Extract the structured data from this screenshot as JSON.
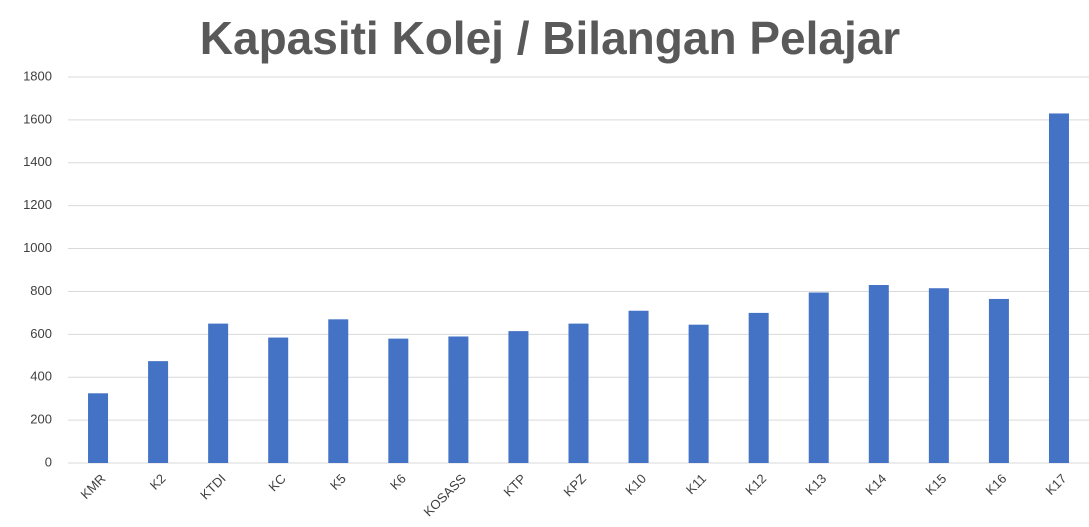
{
  "chart_data": {
    "type": "bar",
    "title": "Kapasiti Kolej / Bilangan Pelajar",
    "categories": [
      "KMR",
      "K2",
      "KTDI",
      "KC",
      "K5",
      "K6",
      "KOSASS",
      "KTP",
      "KPZ",
      "K10",
      "K11",
      "K12",
      "K13",
      "K14",
      "K15",
      "K16",
      "K17"
    ],
    "values": [
      325,
      475,
      650,
      585,
      670,
      580,
      590,
      615,
      650,
      710,
      645,
      700,
      795,
      830,
      815,
      765,
      1630
    ],
    "color": "#4472c4",
    "ylim": [
      0,
      1800
    ],
    "yticks": [
      0,
      200,
      400,
      600,
      800,
      1000,
      1200,
      1400,
      1600,
      1800
    ],
    "grid": true
  }
}
